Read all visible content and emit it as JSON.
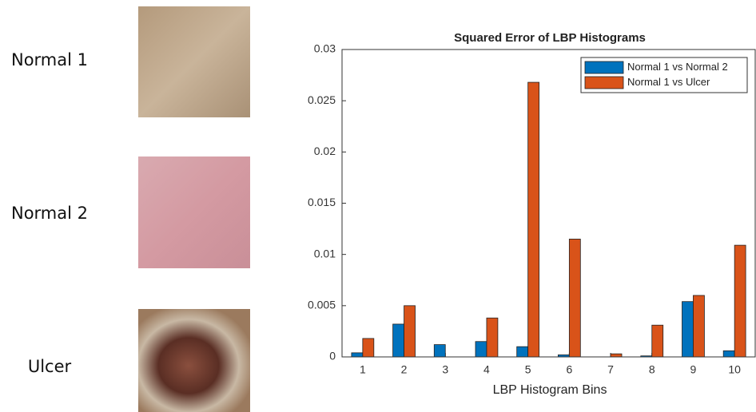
{
  "panels": [
    {
      "label": "Normal 1"
    },
    {
      "label": "Normal 2"
    },
    {
      "label": "Ulcer"
    }
  ],
  "chart_data": {
    "type": "bar",
    "title": "Squared Error of LBP Histograms",
    "x_label": "LBP Histogram Bins",
    "categories": [
      "1",
      "2",
      "3",
      "4",
      "5",
      "6",
      "7",
      "8",
      "9",
      "10"
    ],
    "series": [
      {
        "name": "Normal 1 vs Normal 2",
        "color": "#0072bd",
        "values": [
          0.0004,
          0.0032,
          0.0012,
          0.0015,
          0.001,
          0.0002,
          0,
          0.0001,
          0.0054,
          0.0006
        ]
      },
      {
        "name": "Normal 1 vs Ulcer",
        "color": "#d95319",
        "values": [
          0.0018,
          0.005,
          0,
          0.0038,
          0.0268,
          0.0115,
          0.0003,
          0.0031,
          0.006,
          0.0109
        ]
      }
    ],
    "ylim": [
      0,
      0.03
    ],
    "yticks": [
      0,
      0.005,
      0.01,
      0.015,
      0.02,
      0.025,
      0.03
    ],
    "legend": "top-right"
  }
}
